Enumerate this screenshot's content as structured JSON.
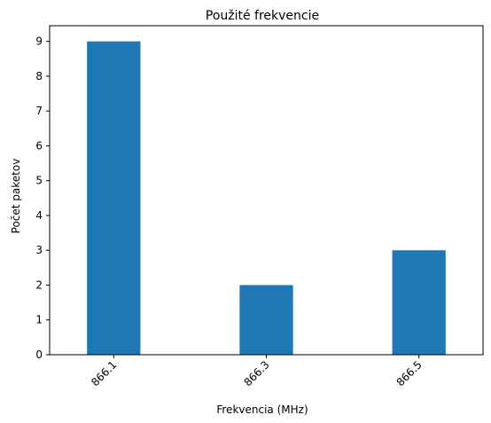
{
  "chart_data": {
    "type": "bar",
    "title": "Použité frekvencie",
    "xlabel": "Frekvencia (MHz)",
    "ylabel": "Počet paketov",
    "categories": [
      "866.1",
      "866.3",
      "866.5"
    ],
    "values": [
      9,
      2,
      3
    ],
    "ylim": [
      0,
      9.45
    ],
    "yticks": [
      0,
      1,
      2,
      3,
      4,
      5,
      6,
      7,
      8,
      9
    ],
    "grid": false,
    "legend": "none",
    "colors": {
      "bar": "#1f77b4"
    }
  }
}
